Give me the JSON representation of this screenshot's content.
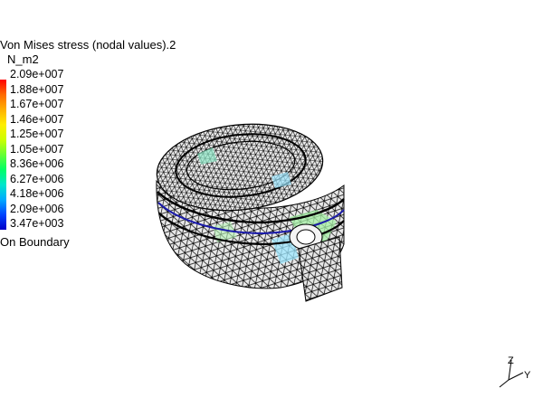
{
  "legend": {
    "title": "Von Mises stress (nodal values).2",
    "unit": "N_m2",
    "values": [
      "2.09e+007",
      "1.88e+007",
      "1.67e+007",
      "1.46e+007",
      "1.25e+007",
      "1.05e+007",
      "8.36e+006",
      "6.27e+006",
      "4.18e+006",
      "2.09e+006",
      "3.47e+003"
    ],
    "colors": [
      "#ff0000",
      "#ff6a00",
      "#ffb000",
      "#ffee00",
      "#ccff00",
      "#66ff33",
      "#00ff66",
      "#00e6cc",
      "#00aaff",
      "#0044ff",
      "#0000c8"
    ],
    "boundary_label": "On Boundary"
  },
  "triad": {
    "z_label": "Z",
    "y_label": "Y"
  }
}
